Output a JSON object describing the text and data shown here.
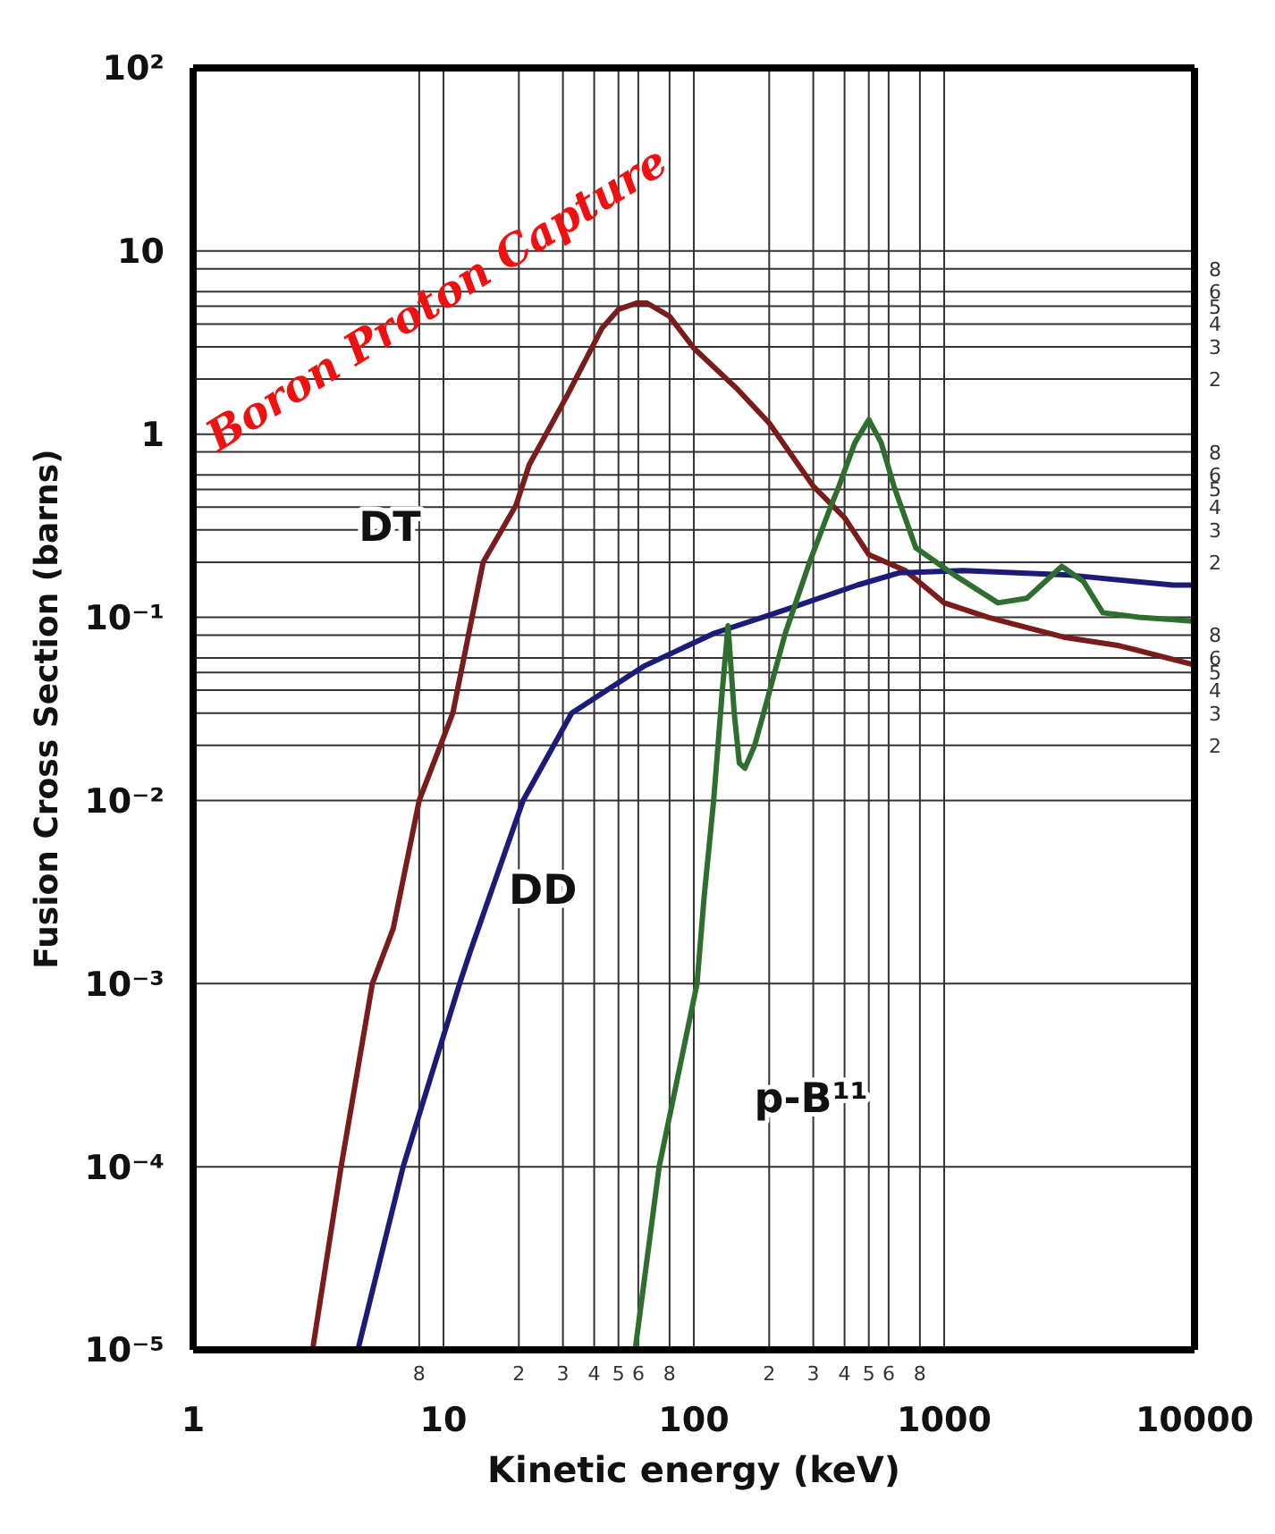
{
  "chart_data": {
    "type": "line",
    "xlabel": "Kinetic energy (keV)",
    "ylabel": "Fusion Cross Section (barns)",
    "annotations": [
      "Boron Proton Capture",
      "8",
      "2",
      "3",
      "4",
      "5",
      "6",
      "8",
      "2",
      "3",
      "4",
      "5",
      "6",
      "8",
      "8",
      "6",
      "5",
      "4",
      "3",
      "2",
      "8",
      "6",
      "5",
      "4",
      "3",
      "2",
      "8",
      "6",
      "5",
      "4",
      "3",
      "2"
    ],
    "log": "xy",
    "grid": true,
    "marker": "none",
    "legend": false,
    "xlim": [
      1,
      10000
    ],
    "xticks": [
      1,
      {
        "value": 8,
        "label": null
      },
      10,
      {
        "value": 20,
        "label": null
      },
      {
        "value": 30,
        "label": null
      },
      {
        "value": 40,
        "label": null
      },
      {
        "value": 50,
        "label": null
      },
      {
        "value": 60,
        "label": null
      },
      {
        "value": 80,
        "label": null
      },
      100,
      {
        "value": 200,
        "label": null
      },
      {
        "value": 300,
        "label": null
      },
      {
        "value": 400,
        "label": null
      },
      {
        "value": 500,
        "label": null
      },
      {
        "value": 600,
        "label": null
      },
      {
        "value": 800,
        "label": null
      },
      1000,
      10000
    ],
    "ylim": [
      1e-05,
      100
    ],
    "yticks": [
      {
        "value": 100,
        "label": "10²"
      },
      10,
      {
        "value": 8,
        "label": null
      },
      {
        "value": 6,
        "label": null
      },
      {
        "value": 5,
        "label": null
      },
      {
        "value": 4,
        "label": null
      },
      {
        "value": 3,
        "label": null
      },
      {
        "value": 2,
        "label": null
      },
      1,
      {
        "value": 0.8,
        "label": null
      },
      {
        "value": 0.6,
        "label": null
      },
      {
        "value": 0.5,
        "label": null
      },
      {
        "value": 0.4,
        "label": null
      },
      {
        "value": 0.3,
        "label": null
      },
      {
        "value": 0.2,
        "label": null
      },
      {
        "value": 0.1,
        "label": "10⁻¹"
      },
      {
        "value": 0.08,
        "label": null
      },
      {
        "value": 0.06,
        "label": null
      },
      {
        "value": 0.05,
        "label": null
      },
      {
        "value": 0.04,
        "label": null
      },
      {
        "value": 0.03,
        "label": null
      },
      {
        "value": 0.02,
        "label": null
      },
      {
        "value": 0.01,
        "label": "10⁻²"
      },
      {
        "value": 0.001,
        "label": "10⁻³"
      },
      {
        "value": 0.0001,
        "label": "10⁻⁴"
      },
      {
        "value": 1e-05,
        "label": "10⁻⁵"
      }
    ],
    "series": [
      {
        "name": "DT",
        "color": "#7a1c1c",
        "x": [
          3,
          3.9,
          5.2,
          6.3,
          8,
          10.9,
          14.4,
          19.5,
          22,
          31,
          43,
          50,
          59,
          65,
          80,
          100,
          150,
          200,
          300,
          400,
          500,
          700,
          1000,
          1500,
          2000,
          3000,
          5000,
          10000
        ],
        "values": [
          1e-05,
          0.0001,
          0.001,
          0.002,
          0.01,
          0.03,
          0.2,
          0.41,
          0.68,
          1.6,
          3.8,
          4.8,
          5.2,
          5.2,
          4.4,
          2.95,
          1.75,
          1.15,
          0.52,
          0.35,
          0.22,
          0.18,
          0.12,
          0.1,
          0.09,
          0.078,
          0.07,
          0.055
        ]
      },
      {
        "name": "DD",
        "color": "#1c1c78",
        "x": [
          4.55,
          6.9,
          11.6,
          12.8,
          20.8,
          32.5,
          63,
          121,
          232,
          450,
          660,
          1190,
          3170,
          8200,
          10000
        ],
        "values": [
          1e-05,
          0.0001,
          0.001,
          0.0015,
          0.01,
          0.03,
          0.054,
          0.082,
          0.11,
          0.15,
          0.175,
          0.18,
          0.17,
          0.15,
          0.15
        ]
      },
      {
        "name": "p-B¹¹",
        "color": "#2e6e2e",
        "x": [
          58.3,
          72.7,
          103,
          110,
          120,
          130,
          137,
          145,
          152,
          160,
          175,
          190,
          232,
          290,
          354,
          380,
          440,
          500,
          560,
          630,
          770,
          1100,
          1640,
          2140,
          2950,
          3600,
          4300,
          6000,
          8300,
          10000
        ],
        "values": [
          1e-05,
          0.0001,
          0.001,
          0.003,
          0.01,
          0.04,
          0.09,
          0.03,
          0.016,
          0.015,
          0.02,
          0.03,
          0.082,
          0.2,
          0.41,
          0.52,
          0.9,
          1.2,
          0.9,
          0.52,
          0.24,
          0.17,
          0.12,
          0.127,
          0.19,
          0.157,
          0.106,
          0.1,
          0.097,
          0.095
        ]
      }
    ]
  }
}
